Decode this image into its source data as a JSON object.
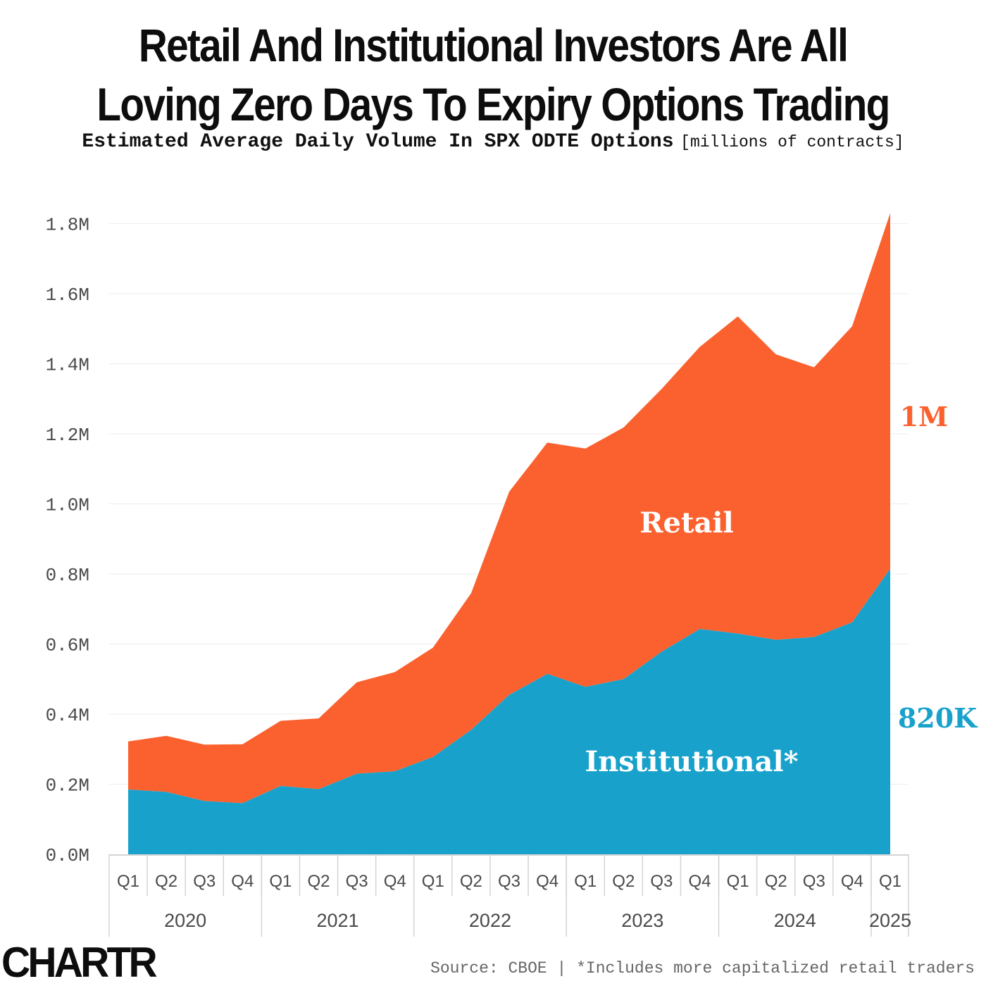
{
  "header": {
    "title_line1": "Retail And Institutional Investors Are All",
    "title_line2": "Loving Zero Days To Expiry Options Trading",
    "subtitle": "Estimated Average Daily Volume In SPX ODTE Options",
    "subtitle_unit": "[millions of contracts]"
  },
  "colors": {
    "retail": "#fb612e",
    "institutional": "#18a2cb",
    "grid": "#ececec",
    "axis": "#d4d4d4"
  },
  "chart_data": {
    "type": "area",
    "stacked": true,
    "title": "Estimated Average Daily Volume In SPX ODTE Options",
    "ylabel": "millions of contracts",
    "ylim": [
      0,
      1.8
    ],
    "yticks": [
      "0.0M",
      "0.2M",
      "0.4M",
      "0.6M",
      "0.8M",
      "1.0M",
      "1.2M",
      "1.4M",
      "1.6M",
      "1.8M"
    ],
    "categories": [
      "Q1",
      "Q2",
      "Q3",
      "Q4",
      "Q1",
      "Q2",
      "Q3",
      "Q4",
      "Q1",
      "Q2",
      "Q3",
      "Q4",
      "Q1",
      "Q2",
      "Q3",
      "Q4",
      "Q1",
      "Q2",
      "Q3",
      "Q4",
      "Q1"
    ],
    "years": [
      {
        "label": "2020",
        "quarters": 4
      },
      {
        "label": "2021",
        "quarters": 4
      },
      {
        "label": "2022",
        "quarters": 4
      },
      {
        "label": "2023",
        "quarters": 4
      },
      {
        "label": "2024",
        "quarters": 4
      },
      {
        "label": "2025",
        "quarters": 1
      }
    ],
    "series": [
      {
        "name": "Institutional*",
        "label": "Institutional*",
        "end_label": "820K",
        "values": [
          0.185,
          0.178,
          0.152,
          0.146,
          0.195,
          0.186,
          0.23,
          0.237,
          0.278,
          0.355,
          0.455,
          0.515,
          0.478,
          0.5,
          0.578,
          0.643,
          0.63,
          0.612,
          0.62,
          0.662,
          0.815
        ]
      },
      {
        "name": "Retail",
        "label": "Retail",
        "end_label": "1M",
        "values": [
          0.137,
          0.16,
          0.161,
          0.168,
          0.186,
          0.202,
          0.261,
          0.283,
          0.312,
          0.39,
          0.58,
          0.66,
          0.68,
          0.718,
          0.75,
          0.805,
          0.905,
          0.815,
          0.77,
          0.845,
          1.015
        ]
      }
    ],
    "legend": "inline"
  },
  "footer": {
    "logo": "CHARTR",
    "source": "Source: CBOE | *Includes more capitalized retail traders"
  }
}
